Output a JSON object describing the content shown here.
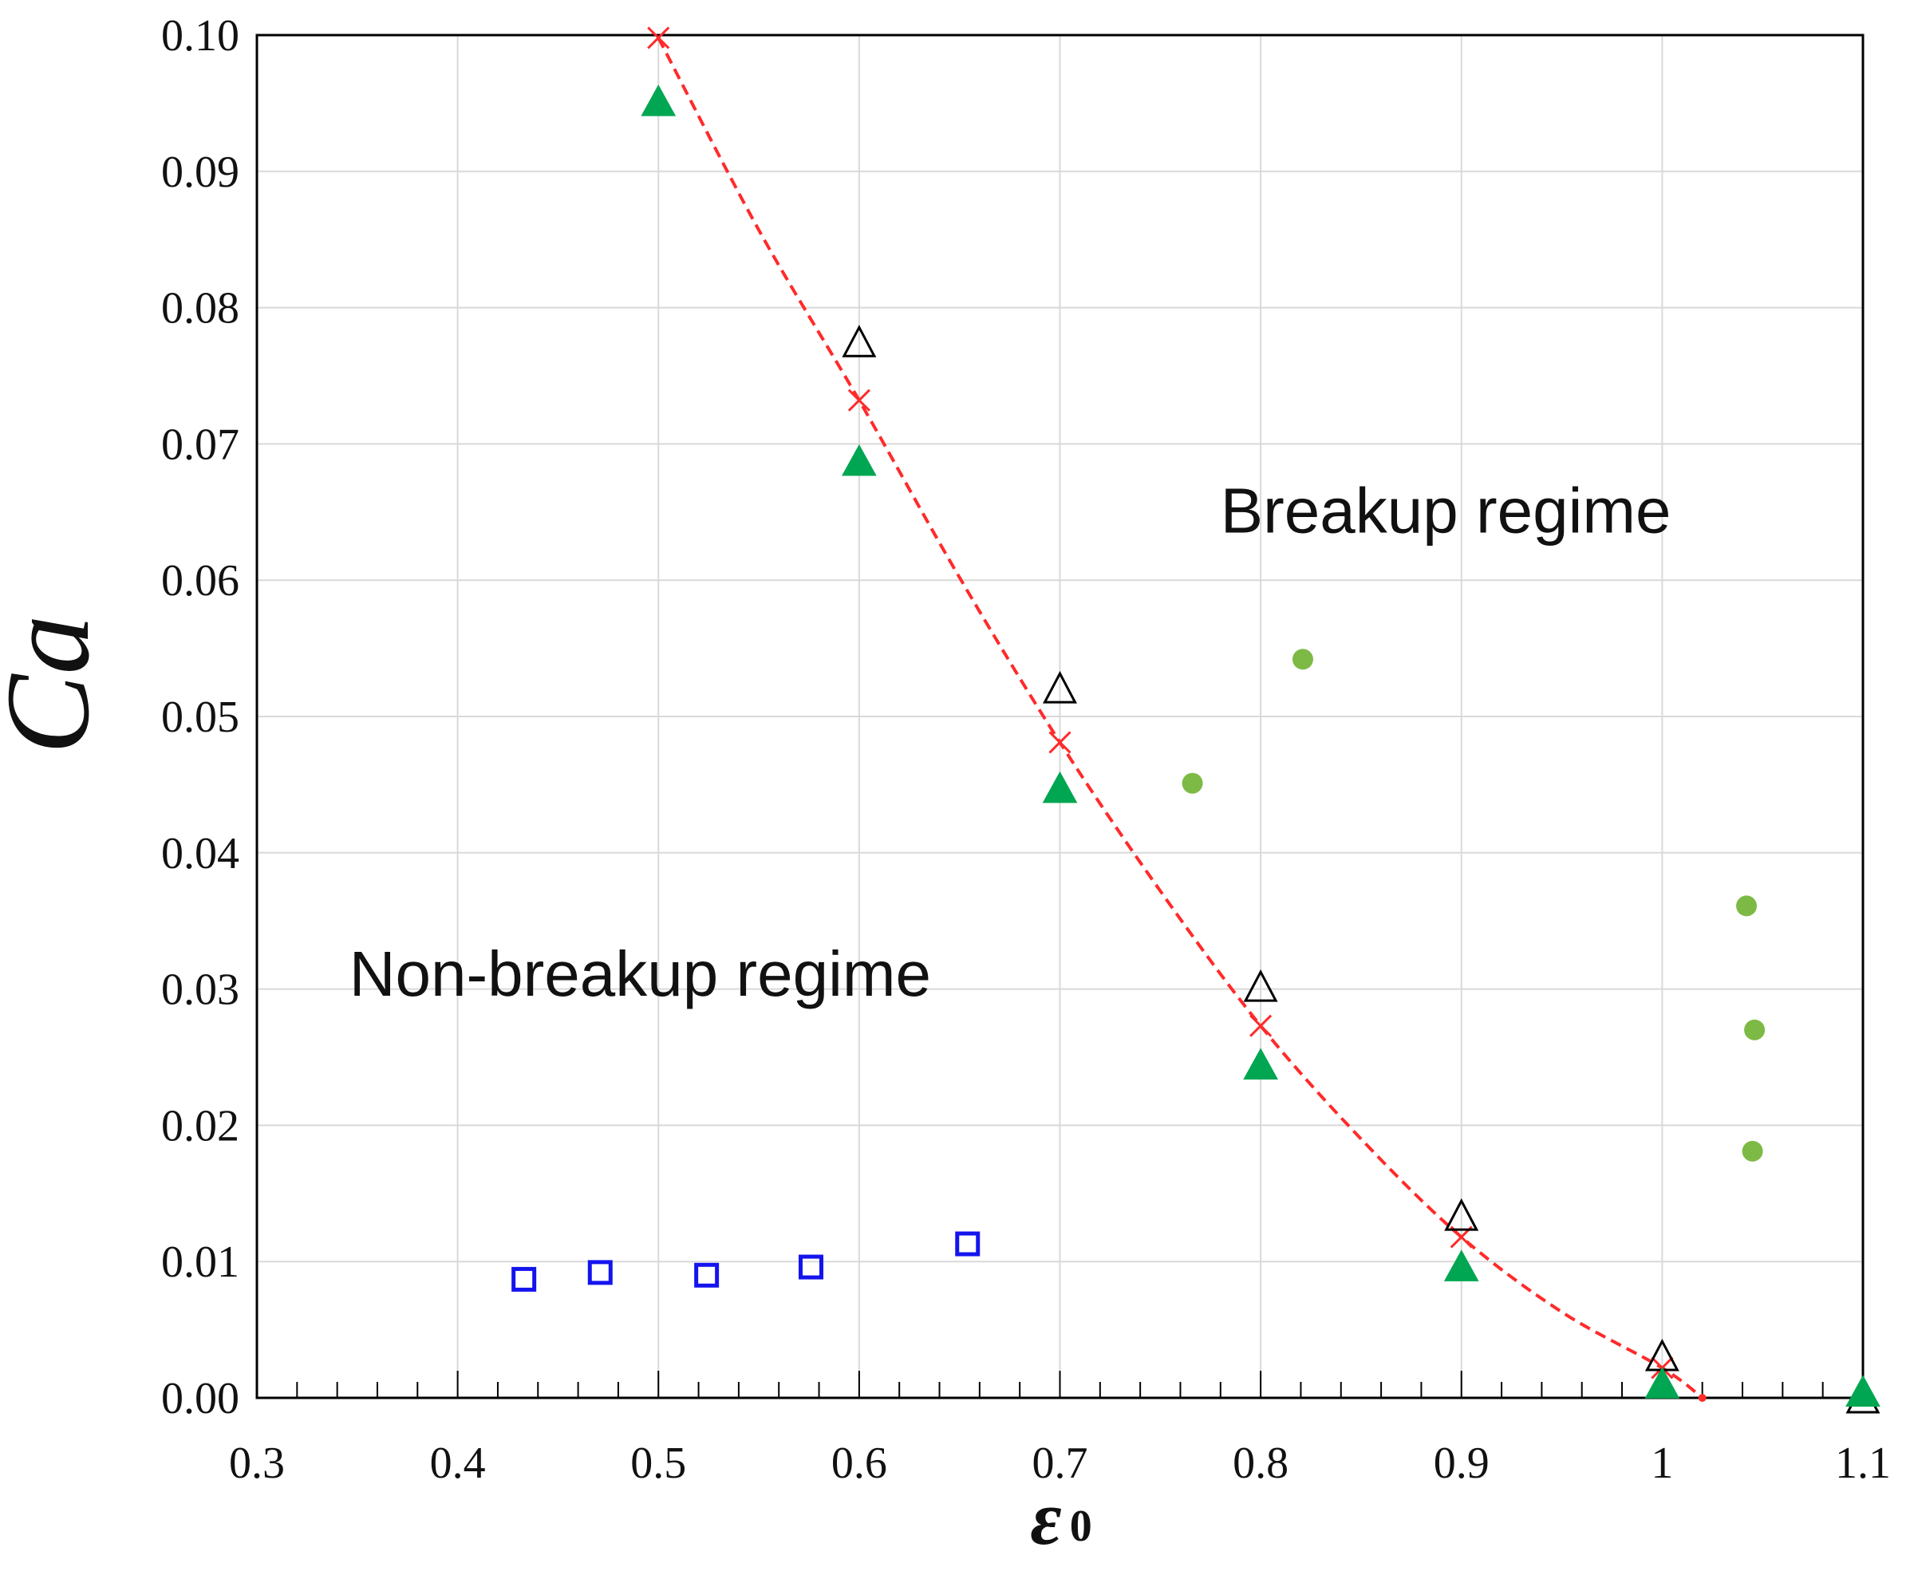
{
  "chart_data": {
    "type": "scatter",
    "xlim": [
      0.3,
      1.1
    ],
    "ylim": [
      0.0,
      0.1
    ],
    "x_ticks": [
      0.3,
      0.4,
      0.5,
      0.6,
      0.7,
      0.8,
      0.9,
      1.0,
      1.1
    ],
    "x_tick_labels": [
      "0.3",
      "0.4",
      "0.5",
      "0.6",
      "0.7",
      "0.8",
      "0.9",
      "1",
      "1.1"
    ],
    "y_ticks": [
      0.0,
      0.01,
      0.02,
      0.03,
      0.04,
      0.05,
      0.06,
      0.07,
      0.08,
      0.09,
      0.1
    ],
    "y_tick_labels": [
      "0.00",
      "0.01",
      "0.02",
      "0.03",
      "0.04",
      "0.05",
      "0.06",
      "0.07",
      "0.08",
      "0.09",
      "0.10"
    ],
    "x_minor_step": 0.02,
    "grid": true,
    "xlabel": "ε",
    "xlabel_subscript": "0",
    "ylabel": "Ca",
    "annotations": [
      {
        "text": "Breakup regime",
        "x": 0.78,
        "y": 0.0635
      },
      {
        "text": "Non-breakup regime",
        "x": 0.346,
        "y": 0.0295
      }
    ],
    "series": [
      {
        "marker": "x",
        "color": "#ff2a2a",
        "line": "dashed",
        "x": [
          0.5,
          0.6,
          0.7,
          0.8,
          0.9,
          1.0
        ],
        "y": [
          0.0998,
          0.0732,
          0.0481,
          0.0273,
          0.0118,
          0.0022
        ]
      },
      {
        "marker": "triangle-open",
        "color": "#000000",
        "x": [
          0.6,
          0.7,
          0.8,
          0.9,
          1.0,
          1.1
        ],
        "y": [
          0.0775,
          0.0521,
          0.0302,
          0.0134,
          0.0031,
          0.0
        ]
      },
      {
        "marker": "triangle-filled",
        "color": "#00a651",
        "x": [
          0.5,
          0.6,
          0.7,
          0.8,
          0.9,
          1.0,
          1.1
        ],
        "y": [
          0.0952,
          0.0688,
          0.0448,
          0.0245,
          0.0097,
          0.0011,
          0.0005
        ]
      },
      {
        "marker": "circle-filled",
        "color": "#7dba45",
        "x": [
          0.766,
          0.821,
          1.042,
          1.046,
          1.045
        ],
        "y": [
          0.0451,
          0.0542,
          0.0361,
          0.027,
          0.0181
        ]
      },
      {
        "marker": "square-open",
        "color": "#1414ee",
        "x": [
          0.433,
          0.471,
          0.524,
          0.576,
          0.654
        ],
        "y": [
          0.0087,
          0.0092,
          0.009,
          0.0096,
          0.0113
        ]
      }
    ],
    "fit_curve": {
      "color": "#ff2a2a",
      "line": "dashed",
      "x": [
        0.5,
        0.55,
        0.6,
        0.65,
        0.7,
        0.75,
        0.8,
        0.85,
        0.9,
        0.95,
        1.0,
        1.02
      ],
      "y": [
        0.0998,
        0.0857,
        0.0732,
        0.0602,
        0.0481,
        0.0372,
        0.0273,
        0.019,
        0.0118,
        0.0063,
        0.0022,
        0.0
      ]
    }
  }
}
